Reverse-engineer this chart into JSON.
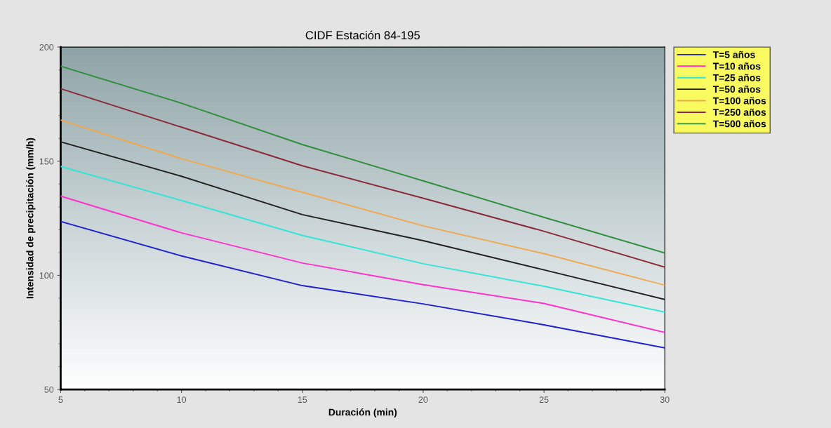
{
  "chart_data": {
    "type": "line",
    "title": "CIDF Estación 84-195",
    "xlabel": "Duración (min)",
    "ylabel": "Intensidad de precipitación (mm/h)",
    "x": [
      5,
      10,
      15,
      20,
      25,
      30
    ],
    "series": [
      {
        "name": "T=5 años",
        "color": "#2020d0",
        "values": [
          123.6,
          108.5,
          95.5,
          87.5,
          78.3,
          68.2
        ]
      },
      {
        "name": "T=10 años",
        "color": "#ff33cc",
        "values": [
          134.7,
          118.6,
          105.4,
          95.9,
          87.7,
          75.0
        ]
      },
      {
        "name": "T=25 años",
        "color": "#33e5d5",
        "values": [
          147.7,
          132.8,
          117.5,
          105.1,
          95.2,
          83.9
        ]
      },
      {
        "name": "T=50 años",
        "color": "#202020",
        "values": [
          158.5,
          143.4,
          126.6,
          115.2,
          102.4,
          89.4
        ]
      },
      {
        "name": "T=100 años",
        "color": "#f0a850",
        "values": [
          168.0,
          151.1,
          136.4,
          121.7,
          109.5,
          95.7
        ]
      },
      {
        "name": "T=250 años",
        "color": "#8b2a3a",
        "values": [
          181.8,
          164.9,
          148.0,
          133.8,
          119.3,
          103.6
        ]
      },
      {
        "name": "T=500 años",
        "color": "#2f8f3f",
        "values": [
          191.6,
          175.4,
          157.3,
          141.4,
          125.4,
          109.8
        ]
      }
    ],
    "xlim": [
      5,
      30
    ],
    "xticks": [
      5,
      10,
      15,
      20,
      25,
      30
    ],
    "ylim": [
      50,
      200
    ],
    "yticks": [
      50,
      100,
      150,
      200
    ],
    "grid": false,
    "legend": "top right",
    "marker": "none",
    "line_style": "solid"
  }
}
